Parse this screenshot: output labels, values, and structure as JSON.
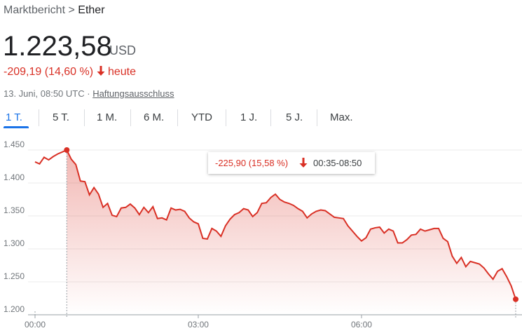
{
  "header": {
    "breadcrumb": {
      "parent": "Marktbericht",
      "separator": ">",
      "current": "Ether"
    },
    "price": "1.223,58",
    "currency": "USD",
    "change": "-209,19 (14,60 %)",
    "period": "heute",
    "timestamp": "13. Juni, 08:50 UTC ·",
    "disclaimer": "Haftungsausschluss"
  },
  "tabs": {
    "items": [
      "1 T.",
      "5 T.",
      "1 M.",
      "6 M.",
      "YTD",
      "1 J.",
      "5 J.",
      "Max."
    ],
    "selected": 0
  },
  "tooltip": {
    "change": "-225,90 (15,58 %)",
    "range": "00:35-08:50"
  },
  "chart_data": {
    "type": "line",
    "color": "#d93025",
    "grid": true,
    "x": [
      "00:00",
      "00:05",
      "00:10",
      "00:15",
      "00:20",
      "00:25",
      "00:30",
      "00:35",
      "00:40",
      "00:45",
      "00:50",
      "00:55",
      "01:00",
      "01:05",
      "01:10",
      "01:15",
      "01:20",
      "01:25",
      "01:30",
      "01:35",
      "01:40",
      "01:45",
      "01:50",
      "01:55",
      "02:00",
      "02:05",
      "02:10",
      "02:15",
      "02:20",
      "02:25",
      "02:30",
      "02:35",
      "02:40",
      "02:45",
      "02:50",
      "02:55",
      "03:00",
      "03:05",
      "03:10",
      "03:15",
      "03:20",
      "03:25",
      "03:30",
      "03:35",
      "03:40",
      "03:45",
      "03:50",
      "03:55",
      "04:00",
      "04:05",
      "04:10",
      "04:15",
      "04:20",
      "04:25",
      "04:30",
      "04:35",
      "04:40",
      "04:45",
      "04:50",
      "04:55",
      "05:00",
      "05:05",
      "05:10",
      "05:15",
      "05:20",
      "05:25",
      "05:30",
      "05:35",
      "05:40",
      "05:45",
      "05:50",
      "05:55",
      "06:00",
      "06:05",
      "06:10",
      "06:15",
      "06:20",
      "06:25",
      "06:30",
      "06:35",
      "06:40",
      "06:45",
      "06:50",
      "06:55",
      "07:00",
      "07:05",
      "07:10",
      "07:15",
      "07:20",
      "07:25",
      "07:30",
      "07:35",
      "07:40",
      "07:45",
      "07:50",
      "07:55",
      "08:00",
      "08:05",
      "08:10",
      "08:15",
      "08:20",
      "08:25",
      "08:30",
      "08:35",
      "08:40",
      "08:45",
      "08:50"
    ],
    "values": [
      1432,
      1429,
      1439,
      1435,
      1440,
      1444,
      1447,
      1450,
      1436,
      1428,
      1403,
      1402,
      1382,
      1393,
      1383,
      1363,
      1369,
      1351,
      1349,
      1362,
      1363,
      1368,
      1362,
      1352,
      1363,
      1355,
      1364,
      1346,
      1347,
      1344,
      1362,
      1359,
      1360,
      1357,
      1347,
      1341,
      1338,
      1316,
      1315,
      1331,
      1327,
      1319,
      1335,
      1345,
      1352,
      1355,
      1361,
      1359,
      1349,
      1355,
      1369,
      1370,
      1378,
      1383,
      1375,
      1371,
      1369,
      1366,
      1361,
      1357,
      1347,
      1353,
      1357,
      1359,
      1358,
      1353,
      1348,
      1347,
      1346,
      1335,
      1327,
      1319,
      1312,
      1317,
      1330,
      1332,
      1333,
      1324,
      1330,
      1327,
      1309,
      1309,
      1314,
      1321,
      1322,
      1330,
      1327,
      1329,
      1331,
      1331,
      1316,
      1311,
      1289,
      1278,
      1287,
      1273,
      1281,
      1279,
      1277,
      1271,
      1262,
      1254,
      1266,
      1270,
      1258,
      1244,
      1223.58
    ],
    "ylim": [
      1200,
      1450
    ],
    "yticks": [
      {
        "value": 1200,
        "label": "1.200"
      },
      {
        "value": 1250,
        "label": "1.250"
      },
      {
        "value": 1300,
        "label": "1.300"
      },
      {
        "value": 1350,
        "label": "1.350"
      },
      {
        "value": 1400,
        "label": "1.400"
      },
      {
        "value": 1450,
        "label": "1.450"
      }
    ],
    "xticks": [
      "00:00",
      "03:00",
      "06:00"
    ]
  }
}
